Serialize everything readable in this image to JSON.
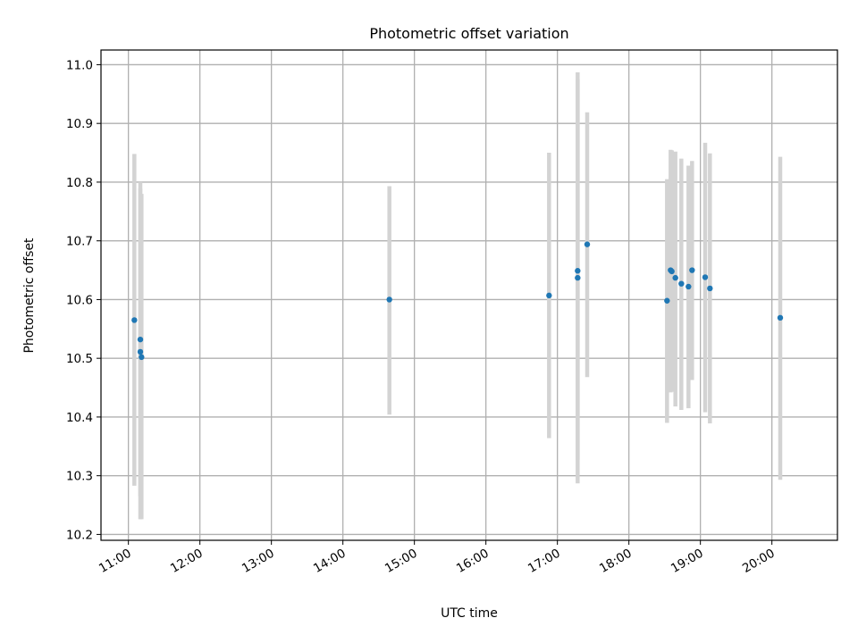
{
  "chart_data": {
    "type": "scatter",
    "title": "Photometric offset variation",
    "xlabel": "UTC time",
    "ylabel": "Photometric offset",
    "xlim": [
      "10:37",
      "20:55"
    ],
    "ylim": [
      10.19,
      11.025
    ],
    "grid": true,
    "xticks": [
      "11:00",
      "12:00",
      "13:00",
      "14:00",
      "15:00",
      "16:00",
      "17:00",
      "18:00",
      "19:00",
      "20:00"
    ],
    "yticks": [
      10.2,
      10.3,
      10.4,
      10.5,
      10.6,
      10.7,
      10.8,
      10.9,
      11.0
    ],
    "point_color": "#1f77b4",
    "errorbar_color": "#d3d3d3",
    "points": [
      {
        "x": "11:05",
        "y": 10.565,
        "err_low": 10.283,
        "err_high": 10.848
      },
      {
        "x": "11:10",
        "y": 10.532,
        "err_low": 10.265,
        "err_high": 10.8
      },
      {
        "x": "11:10",
        "y": 10.511,
        "err_low": 10.226,
        "err_high": 10.789
      },
      {
        "x": "11:11",
        "y": 10.502,
        "err_low": 10.226,
        "err_high": 10.78
      },
      {
        "x": "14:39",
        "y": 10.6,
        "err_low": 10.404,
        "err_high": 10.793
      },
      {
        "x": "16:53",
        "y": 10.607,
        "err_low": 10.364,
        "err_high": 10.85
      },
      {
        "x": "17:17",
        "y": 10.649,
        "err_low": 10.327,
        "err_high": 10.975
      },
      {
        "x": "17:17",
        "y": 10.637,
        "err_low": 10.287,
        "err_high": 10.987
      },
      {
        "x": "17:25",
        "y": 10.694,
        "err_low": 10.468,
        "err_high": 10.919
      },
      {
        "x": "18:32",
        "y": 10.598,
        "err_low": 10.39,
        "err_high": 10.805
      },
      {
        "x": "18:35",
        "y": 10.65,
        "err_low": 10.442,
        "err_high": 10.855
      },
      {
        "x": "18:36",
        "y": 10.648,
        "err_low": 10.443,
        "err_high": 10.854
      },
      {
        "x": "18:39",
        "y": 10.637,
        "err_low": 10.418,
        "err_high": 10.852
      },
      {
        "x": "18:44",
        "y": 10.627,
        "err_low": 10.412,
        "err_high": 10.84
      },
      {
        "x": "18:50",
        "y": 10.622,
        "err_low": 10.415,
        "err_high": 10.828
      },
      {
        "x": "18:53",
        "y": 10.65,
        "err_low": 10.463,
        "err_high": 10.836
      },
      {
        "x": "19:04",
        "y": 10.638,
        "err_low": 10.408,
        "err_high": 10.867
      },
      {
        "x": "19:08",
        "y": 10.619,
        "err_low": 10.389,
        "err_high": 10.849
      },
      {
        "x": "20:07",
        "y": 10.569,
        "err_low": 10.293,
        "err_high": 10.843
      }
    ]
  }
}
